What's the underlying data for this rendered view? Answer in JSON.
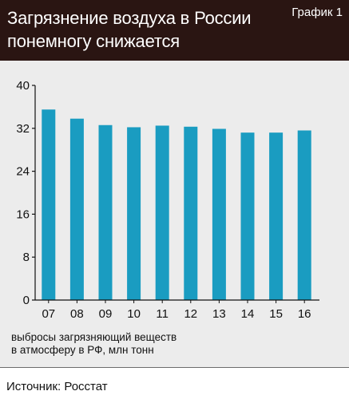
{
  "header": {
    "title_lines": [
      "Загрязнение воздуха в России",
      "понемногу снижается"
    ],
    "badge": "График 1"
  },
  "chart_data": {
    "type": "bar",
    "title": "Загрязнение воздуха в России понемногу снижается",
    "categories": [
      "07",
      "08",
      "09",
      "10",
      "11",
      "12",
      "13",
      "14",
      "15",
      "16"
    ],
    "values": [
      35.5,
      33.8,
      32.6,
      32.2,
      32.5,
      32.3,
      31.9,
      31.2,
      31.2,
      31.6
    ],
    "ylim": [
      0,
      40
    ],
    "yticks": [
      0,
      8,
      16,
      24,
      32,
      40
    ],
    "note_lines": [
      "выбросы загрязняющий веществ",
      "в атмосферу в РФ, млн тонн"
    ],
    "bar_color": "#1a9cc1",
    "grid": false
  },
  "footer": {
    "source": "Источник: Росстат"
  }
}
